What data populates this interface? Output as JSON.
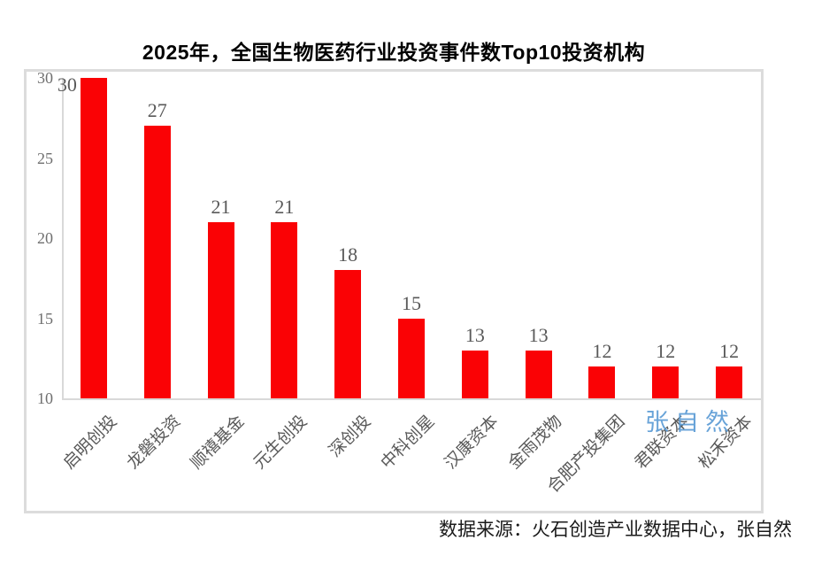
{
  "title": "2025年，全国生物医药行业投资事件数Top10投资机构",
  "source_note": "数据来源：火石创造产业数据中心，张自然",
  "watermark": "张自然",
  "colors": {
    "bar": "#fa0205",
    "frame_border": "#dcdcdc",
    "axis_line": "#d9d9d9",
    "value_label": "#595959",
    "tick_label": "#6f6f6f",
    "category_label": "#595959",
    "watermark": "#5b9bd5",
    "title": "#000000",
    "caption": "#1a1a1a"
  },
  "chart_data": {
    "type": "bar",
    "title": "2025年，全国生物医药行业投资事件数Top10投资机构",
    "categories": [
      "启明创投",
      "龙磐投资",
      "顺禧基金",
      "元生创投",
      "深创投",
      "中科创星",
      "汉康资本",
      "金雨茂物",
      "合肥产投集团",
      "君联资本",
      "松禾资本"
    ],
    "values": [
      30,
      27,
      21,
      21,
      18,
      15,
      13,
      13,
      12,
      12,
      12
    ],
    "xlabel": "",
    "ylabel": "",
    "ylim": [
      10,
      30
    ],
    "yticks": [
      10,
      15,
      20,
      25,
      30
    ],
    "grid": false,
    "legend": false,
    "bar_color": "#fa0205"
  }
}
